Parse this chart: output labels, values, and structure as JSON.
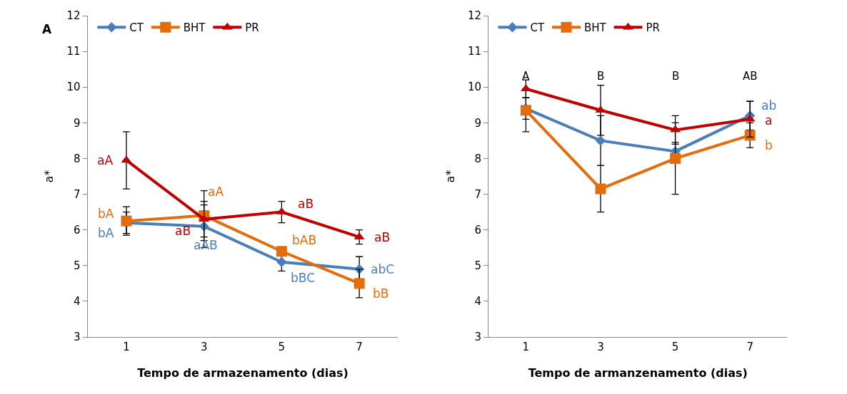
{
  "chart_data": [
    {
      "type": "line",
      "title": "A",
      "xlabel": "Tempo de armazenamento (dias)",
      "ylabel": "a*",
      "categories": [
        "1",
        "3",
        "5",
        "7"
      ],
      "ylim": [
        3,
        12
      ],
      "yticks": [
        3,
        4,
        5,
        6,
        7,
        8,
        9,
        10,
        11,
        12
      ],
      "legend": "top left",
      "series": [
        {
          "name": "CT",
          "color": "#4a7ebb",
          "marker": "diamond",
          "values": [
            6.2,
            6.1,
            5.1,
            4.9
          ],
          "errors": [
            0.3,
            0.6,
            0.25,
            0.35
          ],
          "value_labels": [
            "bA",
            "aAB",
            "bBC",
            "abC"
          ]
        },
        {
          "name": "BHT",
          "color": "#e46c0a",
          "marker": "square",
          "values": [
            6.25,
            6.4,
            5.4,
            4.5
          ],
          "errors": [
            0.4,
            0.7,
            null,
            0.4
          ],
          "value_labels": [
            "bA",
            "aA",
            "bAB",
            "bB"
          ]
        },
        {
          "name": "PR",
          "color": "#c00000",
          "marker": "triangle",
          "values": [
            7.95,
            6.3,
            6.5,
            5.8
          ],
          "errors": [
            0.8,
            0.5,
            0.3,
            0.2
          ],
          "value_labels": [
            "aA",
            "aB",
            "aB",
            "aB"
          ]
        }
      ]
    },
    {
      "type": "line",
      "xlabel": "Tempo de armanzenamento (dias)",
      "ylabel": "a*",
      "categories": [
        "1",
        "3",
        "5",
        "7"
      ],
      "ylim": [
        3,
        12
      ],
      "yticks": [
        3,
        4,
        5,
        6,
        7,
        8,
        9,
        10,
        11,
        12
      ],
      "legend": "top left",
      "annotations": [
        "A",
        "B",
        "B",
        "AB"
      ],
      "series": [
        {
          "name": "CT",
          "color": "#4a7ebb",
          "marker": "diamond",
          "values": [
            9.4,
            8.5,
            8.2,
            9.2
          ],
          "errors": [
            0.3,
            0.7,
            0.25,
            0.4
          ],
          "value_labels": [
            null,
            null,
            null,
            "ab"
          ]
        },
        {
          "name": "BHT",
          "color": "#e46c0a",
          "marker": "square",
          "values": [
            9.35,
            7.15,
            8.0,
            8.65
          ],
          "errors": [
            0.6,
            0.65,
            1.0,
            0.35
          ],
          "value_labels": [
            null,
            null,
            null,
            "b"
          ]
        },
        {
          "name": "PR",
          "color": "#c00000",
          "marker": "triangle",
          "values": [
            9.95,
            9.35,
            8.8,
            9.1
          ],
          "errors": [
            0.25,
            0.7,
            0.4,
            0.5
          ],
          "value_labels": [
            null,
            null,
            null,
            "a"
          ]
        }
      ]
    }
  ]
}
